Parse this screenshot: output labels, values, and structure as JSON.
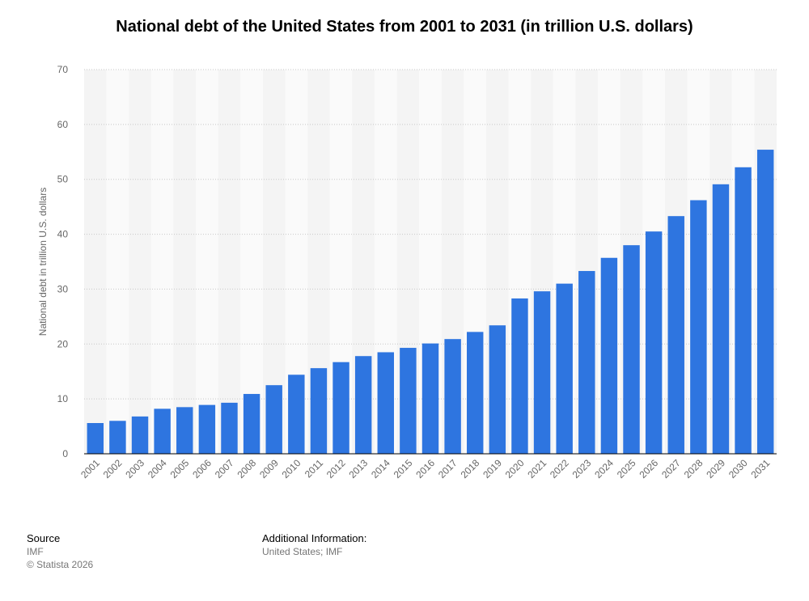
{
  "chart_data": {
    "type": "bar",
    "title": "National debt of the United States from 2001 to 2031 (in trillion U.S. dollars)",
    "xlabel": "",
    "ylabel": "National debt in trillion U.S. dollars",
    "ylim": [
      0,
      70
    ],
    "yticks": [
      0,
      10,
      20,
      30,
      40,
      50,
      60,
      70
    ],
    "grid": true,
    "bar_color": "#2e75e0",
    "categories": [
      "2001",
      "2002",
      "2003",
      "2004",
      "2005",
      "2006",
      "2007",
      "2008",
      "2009",
      "2010",
      "2011",
      "2012",
      "2013",
      "2014",
      "2015",
      "2016",
      "2017",
      "2018",
      "2019",
      "2020",
      "2021",
      "2022",
      "2023",
      "2024",
      "2025",
      "2026",
      "2027",
      "2028",
      "2029",
      "2030",
      "2031"
    ],
    "values": [
      5.6,
      6.0,
      6.8,
      8.2,
      8.5,
      8.9,
      9.3,
      10.9,
      12.5,
      14.4,
      15.6,
      16.7,
      17.8,
      18.5,
      19.3,
      20.1,
      20.9,
      22.2,
      23.4,
      28.3,
      29.6,
      31.0,
      33.3,
      35.7,
      38.0,
      40.5,
      43.3,
      46.2,
      49.1,
      52.2,
      55.4
    ]
  },
  "footer": {
    "source_label": "Source",
    "source_lines": [
      "IMF",
      "© Statista 2026"
    ],
    "info_label": "Additional Information:",
    "info_lines": [
      "United States; IMF"
    ]
  }
}
